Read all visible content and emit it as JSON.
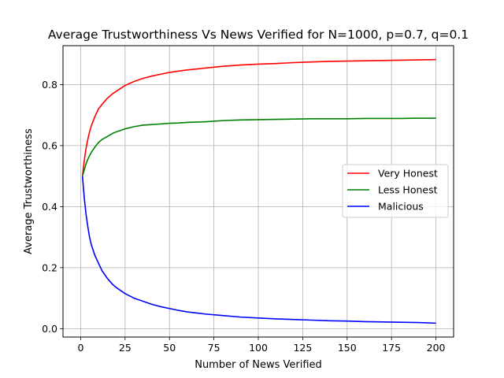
{
  "chart_data": {
    "type": "line",
    "title": "Average Trustworthiness Vs News Verified for N=1000, p=0.7, q=0.1",
    "xlabel": "Number of News Verified",
    "ylabel": "Average Trustworthiness",
    "xlim": [
      -9.95,
      209.95
    ],
    "ylim": [
      -0.0275,
      0.9275
    ],
    "xticks": [
      0,
      25,
      50,
      75,
      100,
      125,
      150,
      175,
      200
    ],
    "xtick_labels": [
      "0",
      "25",
      "50",
      "75",
      "100",
      "125",
      "150",
      "175",
      "200"
    ],
    "yticks": [
      0.0,
      0.2,
      0.4,
      0.6,
      0.8
    ],
    "ytick_labels": [
      "0.0",
      "0.2",
      "0.4",
      "0.6",
      "0.8"
    ],
    "grid": true,
    "legend_position": "center-right",
    "x": [
      1,
      2,
      3,
      4,
      5,
      6,
      8,
      10,
      12,
      15,
      18,
      20,
      25,
      30,
      35,
      40,
      45,
      50,
      55,
      60,
      70,
      80,
      90,
      100,
      110,
      120,
      130,
      140,
      150,
      160,
      170,
      180,
      190,
      200
    ],
    "series": [
      {
        "name": "Very Honest",
        "color": "#ff0000",
        "values": [
          0.5,
          0.55,
          0.59,
          0.62,
          0.645,
          0.665,
          0.695,
          0.72,
          0.735,
          0.755,
          0.77,
          0.778,
          0.797,
          0.81,
          0.82,
          0.828,
          0.834,
          0.84,
          0.844,
          0.848,
          0.854,
          0.86,
          0.864,
          0.867,
          0.869,
          0.872,
          0.874,
          0.876,
          0.877,
          0.878,
          0.879,
          0.88,
          0.881,
          0.882
        ]
      },
      {
        "name": "Less Honest",
        "color": "#008000",
        "values": [
          0.5,
          0.52,
          0.54,
          0.555,
          0.567,
          0.578,
          0.595,
          0.61,
          0.62,
          0.63,
          0.64,
          0.645,
          0.655,
          0.662,
          0.667,
          0.669,
          0.671,
          0.673,
          0.674,
          0.676,
          0.678,
          0.682,
          0.684,
          0.685,
          0.686,
          0.687,
          0.688,
          0.688,
          0.688,
          0.689,
          0.689,
          0.689,
          0.69,
          0.69
        ]
      },
      {
        "name": "Malicious",
        "color": "#0000ff",
        "values": [
          0.5,
          0.43,
          0.375,
          0.335,
          0.3,
          0.275,
          0.24,
          0.215,
          0.19,
          0.165,
          0.145,
          0.135,
          0.115,
          0.1,
          0.09,
          0.08,
          0.072,
          0.066,
          0.06,
          0.055,
          0.048,
          0.043,
          0.038,
          0.035,
          0.032,
          0.03,
          0.028,
          0.026,
          0.025,
          0.023,
          0.022,
          0.021,
          0.02,
          0.018
        ]
      }
    ]
  }
}
